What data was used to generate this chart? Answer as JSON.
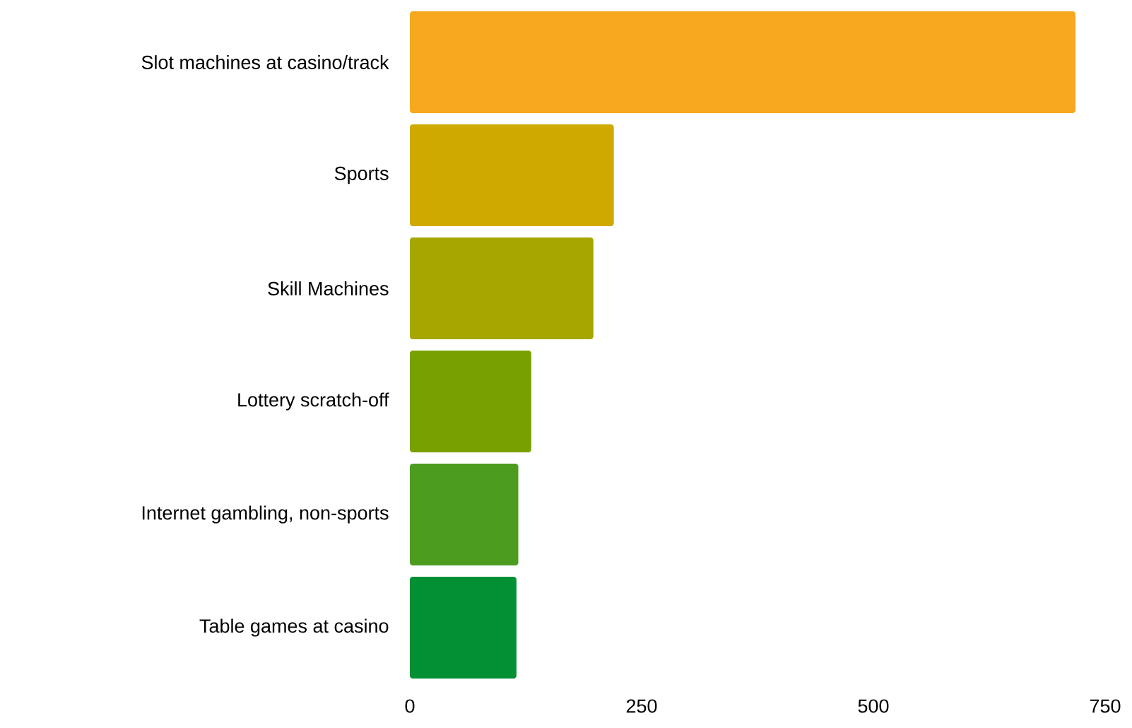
{
  "chart_data": {
    "type": "bar",
    "orientation": "horizontal",
    "categories": [
      "Slot machines at casino/track",
      "Sports",
      "Skill Machines",
      "Lottery scratch-off",
      "Internet gambling, non-sports",
      "Table games at casino"
    ],
    "values": [
      718,
      220,
      198,
      131,
      117,
      115
    ],
    "colors": [
      "#f7a81e",
      "#cfa900",
      "#a5a700",
      "#78a100",
      "#4c9c1f",
      "#038f33"
    ],
    "xlim": [
      0,
      750
    ],
    "xticks": [
      0,
      250,
      500,
      750
    ]
  }
}
